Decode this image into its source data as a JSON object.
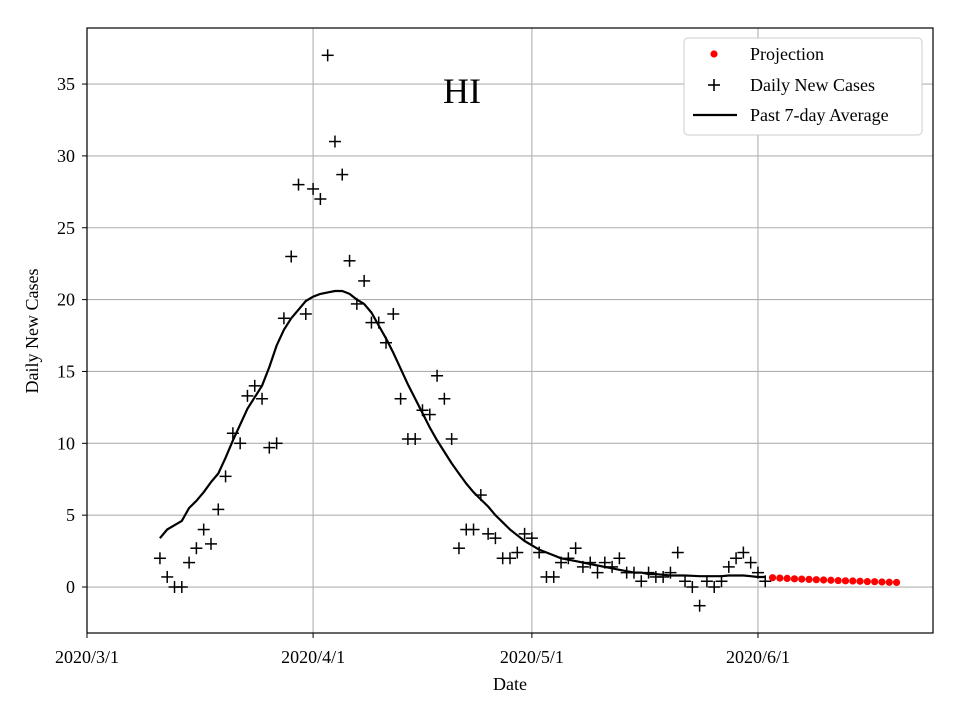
{
  "chart_data": {
    "type": "scatter",
    "title": "HI",
    "xlabel": "Date",
    "ylabel": "Daily New Cases",
    "xlim": [
      0,
      116
    ],
    "ylim": [
      -3.2,
      38.9
    ],
    "grid": true,
    "legend_position": "top-right",
    "x_ticks": [
      {
        "day": 0,
        "label": "2020/3/1"
      },
      {
        "day": 31,
        "label": "2020/4/1"
      },
      {
        "day": 61,
        "label": "2020/5/1"
      },
      {
        "day": 92,
        "label": "2020/6/1"
      }
    ],
    "y_ticks": [
      0,
      5,
      10,
      15,
      20,
      25,
      30,
      35
    ],
    "legend": [
      {
        "key": "projection",
        "label": "Projection"
      },
      {
        "key": "daily",
        "label": "Daily New Cases"
      },
      {
        "key": "average",
        "label": "Past 7-day Average"
      }
    ],
    "colors": {
      "projection": "#ff0000",
      "daily": "#000000",
      "average": "#000000",
      "grid": "#b0b0b0"
    },
    "series": [
      {
        "name": "Daily New Cases",
        "marker": "plus",
        "points": [
          [
            10,
            2.0
          ],
          [
            11,
            0.7
          ],
          [
            12,
            0.0
          ],
          [
            13,
            0.0
          ],
          [
            14,
            1.7
          ],
          [
            15,
            2.7
          ],
          [
            16,
            4.0
          ],
          [
            17,
            3.0
          ],
          [
            18,
            5.4
          ],
          [
            19,
            7.7
          ],
          [
            20,
            10.7
          ],
          [
            21,
            10.0
          ],
          [
            22,
            13.3
          ],
          [
            23,
            14.0
          ],
          [
            24,
            13.1
          ],
          [
            25,
            9.7
          ],
          [
            26,
            10.0
          ],
          [
            27,
            18.7
          ],
          [
            28,
            23.0
          ],
          [
            29,
            28.0
          ],
          [
            30,
            19.0
          ],
          [
            31,
            27.7
          ],
          [
            32,
            27.0
          ],
          [
            33,
            37.0
          ],
          [
            34,
            31.0
          ],
          [
            35,
            28.7
          ],
          [
            36,
            22.7
          ],
          [
            37,
            19.7
          ],
          [
            38,
            21.3
          ],
          [
            39,
            18.4
          ],
          [
            40,
            18.4
          ],
          [
            41,
            17.0
          ],
          [
            42,
            19.0
          ],
          [
            43,
            13.1
          ],
          [
            44,
            10.3
          ],
          [
            45,
            10.3
          ],
          [
            46,
            12.3
          ],
          [
            47,
            12.0
          ],
          [
            48,
            14.7
          ],
          [
            49,
            13.1
          ],
          [
            50,
            10.3
          ],
          [
            51,
            2.7
          ],
          [
            52,
            4.0
          ],
          [
            53,
            4.0
          ],
          [
            54,
            6.4
          ],
          [
            55,
            3.7
          ],
          [
            56,
            3.4
          ],
          [
            57,
            2.0
          ],
          [
            58,
            2.0
          ],
          [
            59,
            2.4
          ],
          [
            60,
            3.7
          ],
          [
            61,
            3.4
          ],
          [
            62,
            2.4
          ],
          [
            63,
            0.7
          ],
          [
            64,
            0.7
          ],
          [
            65,
            1.7
          ],
          [
            66,
            2.0
          ],
          [
            67,
            2.7
          ],
          [
            68,
            1.4
          ],
          [
            69,
            1.7
          ],
          [
            70,
            1.0
          ],
          [
            71,
            1.7
          ],
          [
            72,
            1.4
          ],
          [
            73,
            2.0
          ],
          [
            74,
            1.0
          ],
          [
            75,
            1.0
          ],
          [
            76,
            0.4
          ],
          [
            77,
            1.0
          ],
          [
            78,
            0.7
          ],
          [
            79,
            0.7
          ],
          [
            80,
            1.0
          ],
          [
            81,
            2.4
          ],
          [
            82,
            0.4
          ],
          [
            83,
            0.0
          ],
          [
            84,
            -1.3
          ],
          [
            85,
            0.4
          ],
          [
            86,
            0.0
          ],
          [
            87,
            0.4
          ],
          [
            88,
            1.4
          ],
          [
            89,
            2.0
          ],
          [
            90,
            2.4
          ],
          [
            91,
            1.7
          ],
          [
            92,
            1.0
          ],
          [
            93,
            0.4
          ]
        ]
      },
      {
        "name": "Past 7-day Average",
        "marker": "line",
        "points": [
          [
            10,
            3.4
          ],
          [
            11,
            4.0
          ],
          [
            12,
            4.3
          ],
          [
            13,
            4.6
          ],
          [
            14,
            5.5
          ],
          [
            15,
            6.0
          ],
          [
            16,
            6.6
          ],
          [
            17,
            7.3
          ],
          [
            18,
            7.9
          ],
          [
            19,
            9.0
          ],
          [
            20,
            10.2
          ],
          [
            21,
            11.3
          ],
          [
            22,
            12.4
          ],
          [
            23,
            13.2
          ],
          [
            24,
            14.0
          ],
          [
            25,
            15.3
          ],
          [
            26,
            16.8
          ],
          [
            27,
            17.9
          ],
          [
            28,
            18.7
          ],
          [
            29,
            19.3
          ],
          [
            30,
            19.9
          ],
          [
            31,
            20.2
          ],
          [
            32,
            20.4
          ],
          [
            33,
            20.5
          ],
          [
            34,
            20.6
          ],
          [
            35,
            20.6
          ],
          [
            36,
            20.4
          ],
          [
            37,
            20.0
          ],
          [
            38,
            19.7
          ],
          [
            39,
            19.1
          ],
          [
            40,
            18.2
          ],
          [
            41,
            17.3
          ],
          [
            42,
            16.3
          ],
          [
            43,
            15.2
          ],
          [
            44,
            14.1
          ],
          [
            45,
            13.1
          ],
          [
            46,
            12.1
          ],
          [
            47,
            11.1
          ],
          [
            48,
            10.2
          ],
          [
            49,
            9.4
          ],
          [
            50,
            8.6
          ],
          [
            51,
            7.9
          ],
          [
            52,
            7.2
          ],
          [
            53,
            6.6
          ],
          [
            54,
            6.1
          ],
          [
            55,
            5.6
          ],
          [
            56,
            5.0
          ],
          [
            57,
            4.5
          ],
          [
            58,
            4.0
          ],
          [
            59,
            3.6
          ],
          [
            60,
            3.2
          ],
          [
            61,
            2.9
          ],
          [
            62,
            2.6
          ],
          [
            63,
            2.4
          ],
          [
            64,
            2.2
          ],
          [
            65,
            2.0
          ],
          [
            66,
            1.9
          ],
          [
            67,
            1.8
          ],
          [
            68,
            1.7
          ],
          [
            69,
            1.6
          ],
          [
            70,
            1.5
          ],
          [
            71,
            1.4
          ],
          [
            72,
            1.3
          ],
          [
            73,
            1.2
          ],
          [
            74,
            1.1
          ],
          [
            75,
            1.0
          ],
          [
            76,
            1.0
          ],
          [
            77,
            0.9
          ],
          [
            78,
            0.9
          ],
          [
            79,
            0.85
          ],
          [
            80,
            0.8
          ],
          [
            81,
            0.8
          ],
          [
            82,
            0.8
          ],
          [
            83,
            0.78
          ],
          [
            84,
            0.75
          ],
          [
            85,
            0.75
          ],
          [
            86,
            0.75
          ],
          [
            87,
            0.75
          ],
          [
            88,
            0.8
          ],
          [
            89,
            0.8
          ],
          [
            90,
            0.8
          ],
          [
            91,
            0.75
          ],
          [
            92,
            0.7
          ],
          [
            93,
            0.7
          ]
        ]
      },
      {
        "name": "Projection",
        "marker": "dot",
        "points": [
          [
            94,
            0.65
          ],
          [
            95,
            0.62
          ],
          [
            96,
            0.6
          ],
          [
            97,
            0.57
          ],
          [
            98,
            0.55
          ],
          [
            99,
            0.53
          ],
          [
            100,
            0.51
          ],
          [
            101,
            0.49
          ],
          [
            102,
            0.47
          ],
          [
            103,
            0.45
          ],
          [
            104,
            0.43
          ],
          [
            105,
            0.42
          ],
          [
            106,
            0.4
          ],
          [
            107,
            0.38
          ],
          [
            108,
            0.37
          ],
          [
            109,
            0.35
          ],
          [
            110,
            0.33
          ],
          [
            111,
            0.32
          ]
        ]
      }
    ]
  }
}
